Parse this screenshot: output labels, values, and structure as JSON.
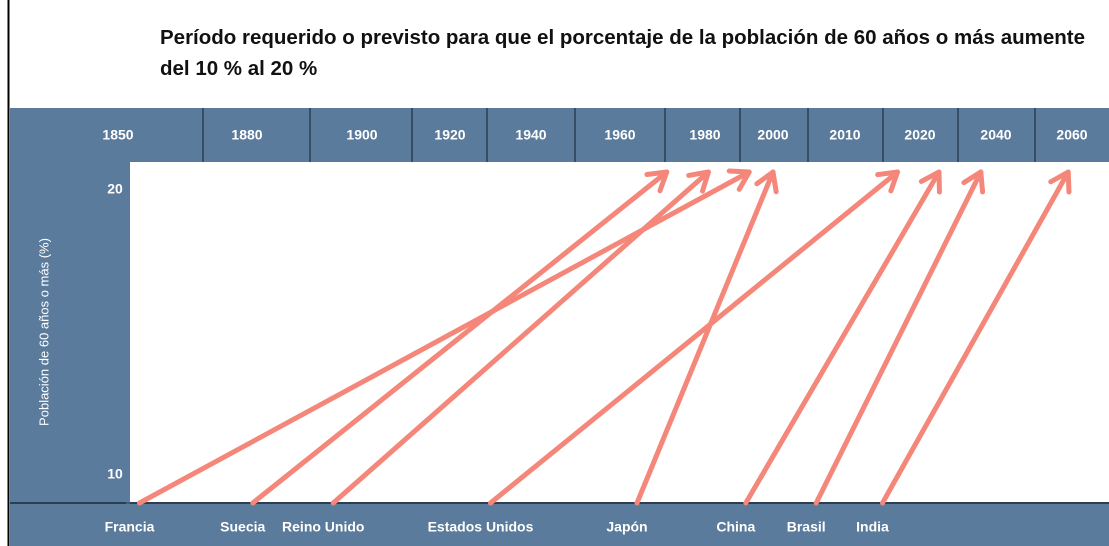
{
  "chart_data": {
    "type": "arrow",
    "title": "Período requerido o previsto para que el porcentaje de la población de 60 años o más aumente del 10 % al 20 %",
    "ylabel": "Población de 60 años o más (%)",
    "xticks": [
      1850,
      1880,
      1900,
      1920,
      1940,
      1960,
      1980,
      2000,
      2010,
      2020,
      2040,
      2060
    ],
    "ylim": [
      10,
      20
    ],
    "yticks": [
      10,
      20
    ],
    "categories": [
      "Francia",
      "Suecia",
      "Reino Unido",
      "Estados Unidos",
      "Japón",
      "China",
      "Brasil",
      "India"
    ],
    "start_year": [
      1855,
      1881,
      1895,
      1930,
      1964,
      1992,
      2006,
      2015
    ],
    "end_year": [
      1993,
      1971,
      1981,
      2017,
      2000,
      2025,
      2036,
      2059
    ],
    "color": "#f4877a"
  }
}
